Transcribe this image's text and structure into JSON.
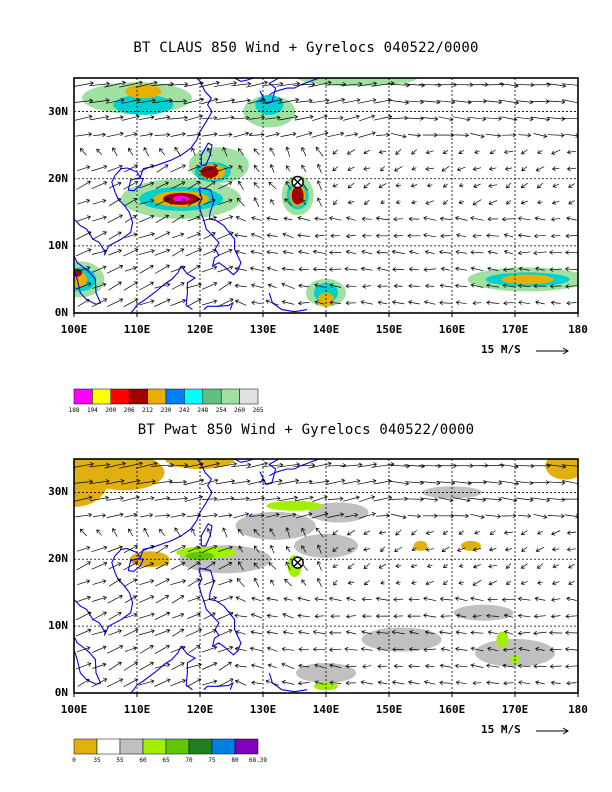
{
  "maps": [
    {
      "title": "BT CLAUS 850 Wind + Gyrelocs 040522/0000",
      "lat_labels": [
        "30N",
        "20N",
        "10N",
        "0N"
      ],
      "lon_labels": [
        "100E",
        "110E",
        "120E",
        "130E",
        "140E",
        "150E",
        "160E",
        "170E",
        "180"
      ],
      "vector_ref": "15 M/S",
      "gyre_symbol": "⊗",
      "gyre_location": {
        "lon": 135.5,
        "lat": 19.5
      },
      "colorbar_labels": [
        "188",
        "194",
        "200",
        "206",
        "212",
        "230",
        "242",
        "248",
        "254",
        "260",
        "265"
      ],
      "colorbar_colors": [
        "#ff00ff",
        "#ffff00",
        "#ff0000",
        "#a00000",
        "#e6b000",
        "#0080ff",
        "#00ffff",
        "#60c080",
        "#a0e0a0",
        "#e0e0e0"
      ]
    },
    {
      "title": "BT Pwat 850 Wind + Gyrelocs 040522/0000",
      "lat_labels": [
        "30N",
        "20N",
        "10N",
        "0N"
      ],
      "lon_labels": [
        "100E",
        "110E",
        "120E",
        "130E",
        "140E",
        "150E",
        "160E",
        "170E",
        "180"
      ],
      "vector_ref": "15 M/S",
      "gyre_symbol": "⊗",
      "gyre_location": {
        "lon": 135.5,
        "lat": 19.5
      },
      "colorbar_labels": [
        "0",
        "35",
        "55",
        "60",
        "65",
        "70",
        "75",
        "80",
        "68.39"
      ],
      "colorbar_colors": [
        "#e0b010",
        "#ffffff",
        "#c0c0c0",
        "#a0f000",
        "#60c800",
        "#208020",
        "#0080e0",
        "#8000c0"
      ]
    }
  ]
}
